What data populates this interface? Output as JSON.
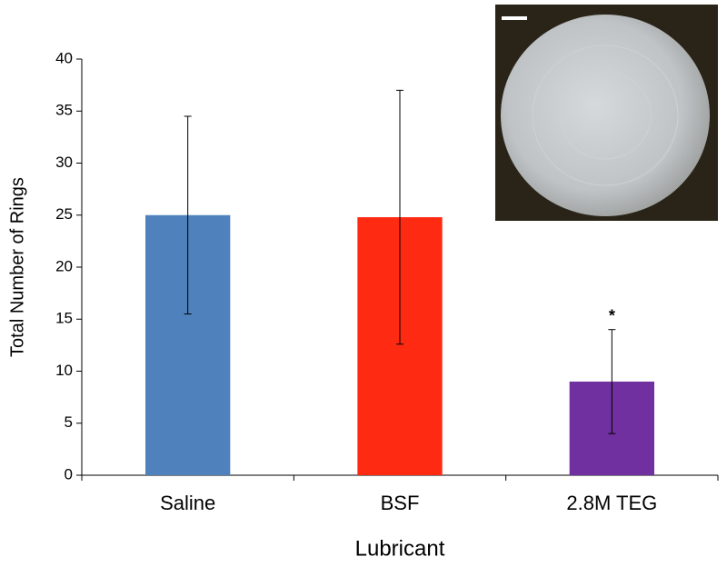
{
  "chart_data": {
    "type": "bar",
    "x_label": "Lubricant",
    "y_label": "Total Number of Rings",
    "categories": [
      "Saline",
      "BSF",
      "2.8M TEG"
    ],
    "values": [
      25,
      24.8,
      9
    ],
    "errors": [
      9.5,
      12.2,
      5
    ],
    "colors": [
      "#4f81bd",
      "#ff2a12",
      "#7030a0"
    ],
    "ylim": [
      0,
      40
    ],
    "yticks": [
      0,
      5,
      10,
      15,
      20,
      25,
      30,
      35,
      40
    ],
    "grid": false,
    "annotations": [
      {
        "text": "*",
        "category": "2.8M TEG"
      }
    ]
  }
}
